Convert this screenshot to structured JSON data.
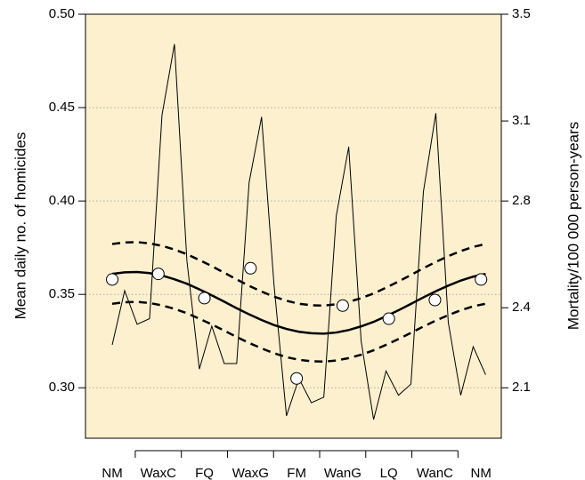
{
  "chart_data": {
    "type": "line",
    "y_label": "Mean daily no. of homicides",
    "y2_label": "Mortality/100 000 person-years",
    "categories": [
      "NM",
      "WaxC",
      "FQ",
      "WaxG",
      "FM",
      "WanG",
      "LQ",
      "WanC",
      "NM"
    ],
    "xlim": [
      -0.58,
      8.44
    ],
    "xticks": [
      0.5,
      1.5,
      2.5,
      3.5,
      4.5,
      5.5,
      6.5,
      7.5
    ],
    "ylim": [
      0.273,
      0.5
    ],
    "yticks": [
      {
        "value": 0.5,
        "label": "0.50"
      },
      0.45,
      {
        "value": 0.4,
        "label": "0.40"
      },
      0.35,
      {
        "value": 0.3,
        "label": "0.30"
      }
    ],
    "y2lim": [
      1.911,
      3.5
    ],
    "y2ticks": [
      3.5,
      3.1,
      2.8,
      2.4,
      2.1
    ],
    "grid": true,
    "background": "#fcf0cf",
    "points": {
      "color": "#000000",
      "fill": "#ffffff",
      "values": [
        0.358,
        0.361,
        0.348,
        0.364,
        0.305,
        0.344,
        0.337,
        0.347,
        0.358
      ]
    },
    "x": [
      0,
      0.27,
      0.54,
      0.81,
      1.08,
      1.35,
      1.62,
      1.89,
      2.16,
      2.43,
      2.7,
      2.97,
      3.24,
      3.51,
      3.78,
      4.05,
      4.32,
      4.59,
      4.86,
      5.13,
      5.4,
      5.67,
      5.94,
      6.21,
      6.48,
      6.75,
      7.02,
      7.29,
      7.56,
      7.83,
      8.1
    ],
    "series": [
      {
        "color": "#000000",
        "style": "thin",
        "values": [
          0.323,
          0.352,
          0.334,
          0.337,
          0.446,
          0.484,
          0.368,
          0.31,
          0.333,
          0.313,
          0.313,
          0.41,
          0.445,
          0.355,
          0.285,
          0.305,
          0.292,
          0.295,
          0.392,
          0.429,
          0.325,
          0.283,
          0.309,
          0.296,
          0.302,
          0.405,
          0.447,
          0.335,
          0.296,
          0.322,
          0.307
        ]
      },
      {
        "color": "#000000",
        "style": "solid",
        "values": [
          0.361,
          0.3618,
          0.362,
          0.3614,
          0.3601,
          0.3581,
          0.3557,
          0.3527,
          0.3495,
          0.3461,
          0.3426,
          0.3393,
          0.3363,
          0.3336,
          0.3315,
          0.33,
          0.3292,
          0.329,
          0.3296,
          0.3309,
          0.3329,
          0.3353,
          0.3383,
          0.3415,
          0.3449,
          0.3484,
          0.3517,
          0.3547,
          0.3574,
          0.3595,
          0.361
        ]
      },
      {
        "color": "#000000",
        "style": "dashed",
        "values": [
          0.377,
          0.3778,
          0.378,
          0.3773,
          0.376,
          0.374,
          0.3715,
          0.3684,
          0.3651,
          0.3616,
          0.358,
          0.3546,
          0.3515,
          0.3488,
          0.3466,
          0.345,
          0.3442,
          0.344,
          0.3447,
          0.346,
          0.348,
          0.3505,
          0.3536,
          0.3569,
          0.3604,
          0.364,
          0.3674,
          0.3705,
          0.3732,
          0.3754,
          0.377
        ]
      },
      {
        "color": "#000000",
        "style": "dashed",
        "values": [
          0.345,
          0.3458,
          0.346,
          0.3454,
          0.3441,
          0.3423,
          0.3399,
          0.337,
          0.3339,
          0.3306,
          0.3272,
          0.324,
          0.3211,
          0.3185,
          0.3164,
          0.315,
          0.3142,
          0.314,
          0.3146,
          0.3159,
          0.3177,
          0.3201,
          0.323,
          0.3261,
          0.3294,
          0.3328,
          0.336,
          0.3389,
          0.3415,
          0.3436,
          0.345
        ]
      }
    ]
  }
}
